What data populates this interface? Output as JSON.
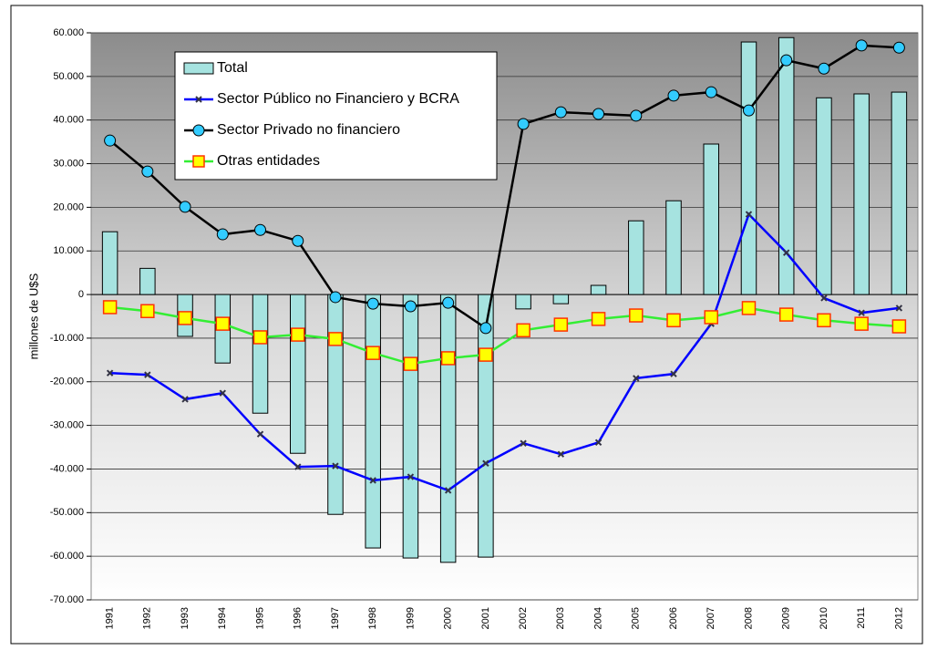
{
  "chart_data": {
    "type": "bar-line",
    "y_label": "millones de U$S",
    "categories": [
      "1991",
      "1992",
      "1993",
      "1994",
      "1995",
      "1996",
      "1997",
      "1998",
      "1999",
      "2000",
      "2001",
      "2002",
      "2003",
      "2004",
      "2005",
      "2006",
      "2007",
      "2008",
      "2009",
      "2010",
      "2011",
      "2012"
    ],
    "ylim": [
      -70000,
      60000
    ],
    "yticks": [
      {
        "value": 60000,
        "label": "60.000"
      },
      {
        "value": 50000,
        "label": "50.000"
      },
      {
        "value": 40000,
        "label": "40.000"
      },
      {
        "value": 30000,
        "label": "30.000"
      },
      {
        "value": 20000,
        "label": "20.000"
      },
      {
        "value": 10000,
        "label": "10.000"
      },
      0,
      {
        "value": -10000,
        "label": "-10.000"
      },
      {
        "value": -20000,
        "label": "-20.000"
      },
      {
        "value": -30000,
        "label": "-30.000"
      },
      {
        "value": -40000,
        "label": "-40.000"
      },
      {
        "value": -50000,
        "label": "-50.000"
      },
      {
        "value": -60000,
        "label": "-60.000"
      },
      {
        "value": -70000,
        "label": "-70.000"
      }
    ],
    "grid": true,
    "legend": "upper left",
    "series": [
      {
        "name": "Total",
        "type": "bar",
        "color": "#a6e3e0",
        "values": [
          14400,
          6000,
          -9600,
          -15700,
          -27200,
          -36400,
          -50400,
          -58100,
          -60400,
          -61400,
          -60200,
          -3300,
          -2100,
          2100,
          16900,
          21500,
          34500,
          57900,
          58900,
          45100,
          46000,
          46400
        ]
      },
      {
        "name": "Sector Público no Financiero y BCRA",
        "type": "line",
        "color": "#0000ff",
        "marker": "x",
        "values": [
          -18000,
          -18400,
          -24000,
          -22600,
          -32000,
          -39500,
          -39300,
          -42600,
          -41800,
          -44900,
          -38700,
          -34100,
          -36600,
          -33900,
          -19200,
          -18200,
          -6700,
          18400,
          9600,
          -800,
          -4200,
          -3100
        ]
      },
      {
        "name": "Sector Privado no financiero",
        "type": "line",
        "color": "#000000",
        "marker": "circle",
        "marker_color": "#33ccff",
        "values": [
          35300,
          28200,
          20100,
          13800,
          14800,
          12300,
          -600,
          -2100,
          -2700,
          -1900,
          -7700,
          39100,
          41800,
          41400,
          41000,
          45600,
          46400,
          42200,
          53700,
          51800,
          57100,
          56600
        ]
      },
      {
        "name": "Otras entidades",
        "type": "line",
        "color": "#33ee33",
        "marker": "square",
        "marker_color": "#ffff00",
        "values": [
          -2900,
          -3800,
          -5400,
          -6700,
          -9800,
          -9200,
          -10200,
          -13400,
          -15900,
          -14600,
          -13800,
          -8200,
          -6900,
          -5600,
          -4800,
          -5900,
          -5200,
          -3100,
          -4600,
          -5900,
          -6700,
          -7300
        ]
      }
    ]
  }
}
